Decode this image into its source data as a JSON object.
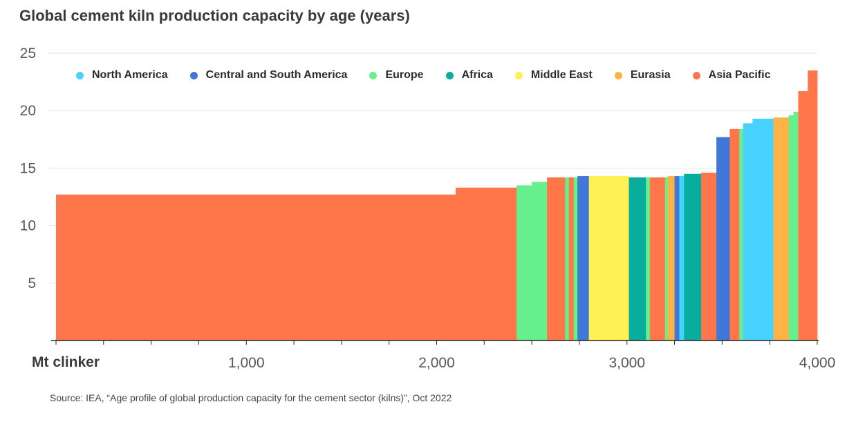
{
  "title": "Global cement kiln production capacity by age (years)",
  "source": "Source: IEA, “Age profile of global production capacity for the cement sector (kilns)”, Oct 2022",
  "colors": {
    "North America": "#47d1ff",
    "Central and South America": "#3f78d6",
    "Europe": "#66f08d",
    "Africa": "#09ad9d",
    "Middle East": "#fff054",
    "Eurasia": "#ffb347",
    "Asia Pacific": "#ff764a"
  },
  "chart_data": {
    "type": "bar",
    "subtype": "variable-width step bar",
    "xlabel": "Mt clinker",
    "ylabel": "",
    "xlim": [
      0,
      4000
    ],
    "ylim": [
      0,
      25
    ],
    "xticks": [
      1000,
      2000,
      3000,
      4000
    ],
    "xtick_labels": [
      "1,000",
      "2,000",
      "3,000",
      "4,000"
    ],
    "yticks": [
      5,
      10,
      15,
      20,
      25
    ],
    "grid": "horizontal",
    "legend_position": "top",
    "legend": [
      "North America",
      "Central and South America",
      "Europe",
      "Africa",
      "Middle East",
      "Eurasia",
      "Asia Pacific"
    ],
    "segments": [
      {
        "region": "Asia Pacific",
        "x0": 0,
        "x1": 2100,
        "value": 12.7
      },
      {
        "region": "Asia Pacific",
        "x0": 2100,
        "x1": 2420,
        "value": 13.3
      },
      {
        "region": "Europe",
        "x0": 2420,
        "x1": 2500,
        "value": 13.5
      },
      {
        "region": "Europe",
        "x0": 2500,
        "x1": 2580,
        "value": 13.8
      },
      {
        "region": "Asia Pacific",
        "x0": 2580,
        "x1": 2675,
        "value": 14.2
      },
      {
        "region": "Europe",
        "x0": 2675,
        "x1": 2695,
        "value": 14.2
      },
      {
        "region": "Asia Pacific",
        "x0": 2695,
        "x1": 2720,
        "value": 14.2
      },
      {
        "region": "Europe",
        "x0": 2720,
        "x1": 2740,
        "value": 14.2
      },
      {
        "region": "Central and South America",
        "x0": 2740,
        "x1": 2800,
        "value": 14.3
      },
      {
        "region": "Middle East",
        "x0": 2800,
        "x1": 3010,
        "value": 14.3
      },
      {
        "region": "Africa",
        "x0": 3010,
        "x1": 3100,
        "value": 14.2
      },
      {
        "region": "Europe",
        "x0": 3100,
        "x1": 3120,
        "value": 14.2
      },
      {
        "region": "Asia Pacific",
        "x0": 3120,
        "x1": 3200,
        "value": 14.2
      },
      {
        "region": "Europe",
        "x0": 3200,
        "x1": 3215,
        "value": 14.2
      },
      {
        "region": "Eurasia",
        "x0": 3215,
        "x1": 3250,
        "value": 14.3
      },
      {
        "region": "Central and South America",
        "x0": 3250,
        "x1": 3275,
        "value": 14.3
      },
      {
        "region": "North America",
        "x0": 3275,
        "x1": 3300,
        "value": 14.3
      },
      {
        "region": "Africa",
        "x0": 3300,
        "x1": 3390,
        "value": 14.5
      },
      {
        "region": "Asia Pacific",
        "x0": 3390,
        "x1": 3470,
        "value": 14.6
      },
      {
        "region": "Central and South America",
        "x0": 3470,
        "x1": 3540,
        "value": 17.7
      },
      {
        "region": "Asia Pacific",
        "x0": 3540,
        "x1": 3590,
        "value": 18.4
      },
      {
        "region": "Europe",
        "x0": 3590,
        "x1": 3610,
        "value": 18.4
      },
      {
        "region": "North America",
        "x0": 3610,
        "x1": 3660,
        "value": 18.9
      },
      {
        "region": "North America",
        "x0": 3660,
        "x1": 3770,
        "value": 19.3
      },
      {
        "region": "Eurasia",
        "x0": 3770,
        "x1": 3850,
        "value": 19.4
      },
      {
        "region": "Europe",
        "x0": 3850,
        "x1": 3875,
        "value": 19.6
      },
      {
        "region": "Europe",
        "x0": 3875,
        "x1": 3900,
        "value": 19.9
      },
      {
        "region": "Asia Pacific",
        "x0": 3900,
        "x1": 3950,
        "value": 21.7
      },
      {
        "region": "Asia Pacific",
        "x0": 3950,
        "x1": 4000,
        "value": 23.5
      }
    ]
  }
}
